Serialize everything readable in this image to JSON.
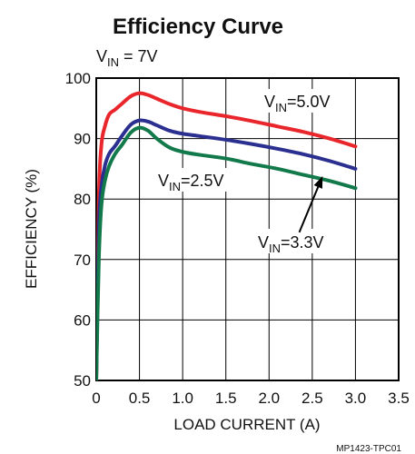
{
  "chart_data": {
    "type": "line",
    "title": "Efficiency Curve",
    "subtitle": {
      "main": "V",
      "sub": "IN",
      "rest": " = 7V"
    },
    "xlabel": "LOAD CURRENT (A)",
    "ylabel": "EFFICIENCY (%)",
    "xlim": [
      0,
      3.5
    ],
    "ylim": [
      50,
      100
    ],
    "xticks": [
      "0",
      "0.5",
      "1.0",
      "1.5",
      "2.0",
      "2.5",
      "3.0",
      "3.5"
    ],
    "yticks": [
      "50",
      "60",
      "70",
      "80",
      "90",
      "100"
    ],
    "grid": true,
    "footnote": "MP1423-TPC01",
    "series": [
      {
        "name": "VIN=5.0V",
        "label": {
          "main": "V",
          "sub": "IN",
          "rest": "=5.0V"
        },
        "color": "#e8262b",
        "x": [
          0.0,
          0.03,
          0.06,
          0.1,
          0.15,
          0.22,
          0.3,
          0.4,
          0.5,
          0.6,
          0.7,
          0.85,
          1.0,
          1.2,
          1.5,
          1.8,
          2.1,
          2.4,
          2.7,
          3.0
        ],
        "y": [
          50,
          80,
          89,
          92,
          94,
          94.8,
          95.8,
          97.0,
          97.5,
          97.2,
          96.6,
          95.7,
          95.0,
          94.4,
          93.7,
          92.9,
          92.0,
          91.1,
          90.0,
          88.7
        ]
      },
      {
        "name": "VIN=3.3V",
        "label": {
          "main": "V",
          "sub": "IN",
          "rest": "=3.3V"
        },
        "color": "#2b2f8f",
        "x": [
          0.0,
          0.03,
          0.06,
          0.1,
          0.15,
          0.22,
          0.3,
          0.4,
          0.5,
          0.6,
          0.7,
          0.85,
          1.0,
          1.2,
          1.5,
          1.8,
          2.1,
          2.4,
          2.7,
          3.0
        ],
        "y": [
          50,
          75,
          82,
          85.5,
          87.5,
          88.8,
          90.5,
          92.3,
          93.0,
          92.8,
          92.2,
          91.3,
          90.8,
          90.4,
          89.8,
          89.1,
          88.3,
          87.4,
          86.3,
          85.0
        ]
      },
      {
        "name": "VIN=2.5V",
        "label": {
          "main": "V",
          "sub": "IN",
          "rest": "=2.5V"
        },
        "color": "#127a4a",
        "x": [
          0.0,
          0.03,
          0.06,
          0.1,
          0.15,
          0.22,
          0.3,
          0.4,
          0.5,
          0.6,
          0.7,
          0.85,
          1.0,
          1.2,
          1.5,
          1.8,
          2.1,
          2.4,
          2.7,
          3.0
        ],
        "y": [
          50,
          70,
          79,
          83,
          85.5,
          87.5,
          89.0,
          91.0,
          91.8,
          91.3,
          90.0,
          88.5,
          87.8,
          87.3,
          86.7,
          85.8,
          85.0,
          84.0,
          83.0,
          81.8
        ]
      }
    ],
    "annotation_arrow": {
      "target_series": "VIN=3.3V",
      "from": [
        2.35,
        74.5
      ],
      "to": [
        2.62,
        83.8
      ]
    }
  }
}
